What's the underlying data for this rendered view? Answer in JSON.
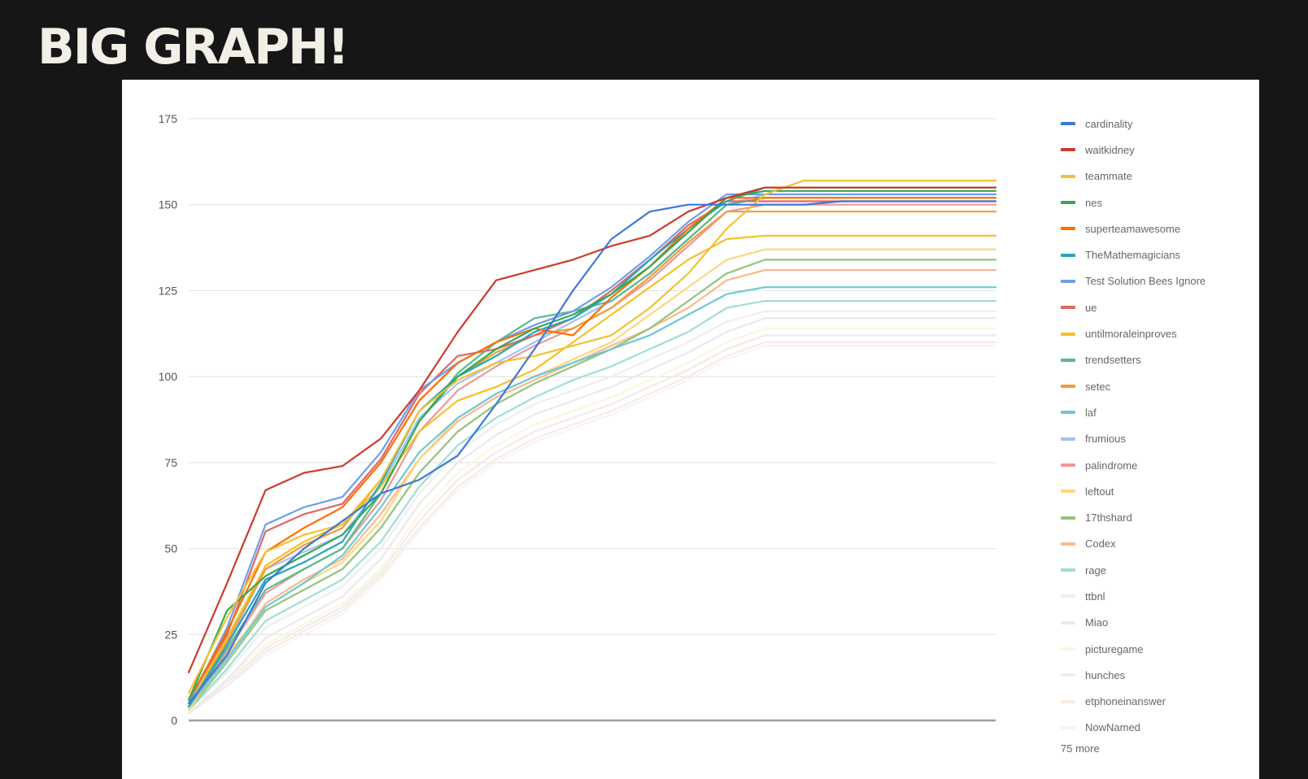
{
  "slide": {
    "title": "BIG GRAPH!"
  },
  "chart_data": {
    "type": "line",
    "title": "",
    "xlabel": "",
    "ylabel": "",
    "ylim": [
      0,
      175
    ],
    "yticks": [
      0,
      25,
      50,
      75,
      100,
      125,
      150,
      175
    ],
    "grid": "horizontal",
    "legend_position": "right",
    "legend_more_label": "75 more",
    "n_points": 22,
    "series": [
      {
        "name": "cardinality",
        "color": "#3c78d8",
        "values": [
          5,
          19,
          40,
          50,
          58,
          66,
          70,
          77,
          92,
          108,
          125,
          140,
          148,
          150,
          150,
          150,
          150,
          151,
          151,
          151,
          151,
          151
        ]
      },
      {
        "name": "waitkidney",
        "color": "#cc3b2e",
        "values": [
          14,
          40,
          67,
          72,
          74,
          82,
          96,
          113,
          128,
          131,
          134,
          138,
          141,
          148,
          152,
          155,
          155,
          155,
          155,
          155,
          155,
          155
        ]
      },
      {
        "name": "teammate",
        "color": "#f1c232",
        "values": [
          8,
          30,
          49,
          54,
          57,
          70,
          90,
          99,
          104,
          106,
          109,
          112,
          120,
          130,
          143,
          153,
          157,
          157,
          157,
          157,
          157,
          157
        ]
      },
      {
        "name": "nes",
        "color": "#34a853",
        "values": [
          6,
          32,
          42,
          48,
          54,
          66,
          87,
          100,
          108,
          114,
          118,
          124,
          132,
          142,
          152,
          154,
          154,
          154,
          154,
          154,
          154,
          154
        ]
      },
      {
        "name": "superteamawesome",
        "color": "#ff6d01",
        "values": [
          6,
          26,
          49,
          56,
          62,
          75,
          93,
          104,
          110,
          114,
          112,
          123,
          132,
          143,
          152,
          152,
          152,
          152,
          152,
          152,
          152,
          152
        ]
      },
      {
        "name": "TheMathemagicians",
        "color": "#24a6b8",
        "values": [
          4,
          22,
          41,
          46,
          52,
          69,
          90,
          100,
          106,
          113,
          117,
          124,
          134,
          143,
          151,
          155,
          155,
          155,
          155,
          155,
          155,
          155
        ]
      },
      {
        "name": "Test Solution Bees Ignore",
        "color": "#6d9eeb",
        "values": [
          5,
          27,
          57,
          62,
          65,
          78,
          96,
          104,
          110,
          115,
          119,
          126,
          135,
          145,
          153,
          153,
          153,
          153,
          153,
          153,
          153,
          153
        ]
      },
      {
        "name": "ue",
        "color": "#e06666",
        "values": [
          6,
          25,
          55,
          60,
          63,
          76,
          95,
          106,
          108,
          112,
          117,
          125,
          134,
          144,
          151,
          151,
          151,
          151,
          151,
          151,
          151,
          151
        ]
      },
      {
        "name": "untilmoraleinproves",
        "color": "#f6c026",
        "values": [
          5,
          24,
          45,
          52,
          57,
          68,
          84,
          93,
          97,
          102,
          110,
          118,
          126,
          134,
          140,
          141,
          141,
          141,
          141,
          141,
          141,
          141
        ]
      },
      {
        "name": "trendsetters",
        "color": "#57bb8a",
        "values": [
          4,
          21,
          38,
          44,
          50,
          66,
          87,
          101,
          110,
          117,
          119,
          122,
          130,
          140,
          150,
          152,
          152,
          152,
          152,
          152,
          152,
          152
        ]
      },
      {
        "name": "setec",
        "color": "#f39c37",
        "values": [
          5,
          23,
          44,
          51,
          56,
          70,
          90,
          100,
          107,
          112,
          114,
          120,
          129,
          139,
          148,
          148,
          148,
          148,
          148,
          148,
          148,
          148
        ]
      },
      {
        "name": "laf",
        "color": "#6bc8d6",
        "values": [
          4,
          18,
          33,
          40,
          48,
          62,
          78,
          88,
          95,
          100,
          104,
          108,
          112,
          118,
          124,
          126,
          126,
          126,
          126,
          126,
          126,
          126
        ]
      },
      {
        "name": "frumious",
        "color": "#a4c2f4",
        "values": [
          4,
          22,
          44,
          49,
          54,
          68,
          88,
          98,
          104,
          110,
          116,
          122,
          130,
          140,
          150,
          153,
          153,
          153,
          153,
          153,
          153,
          153
        ]
      },
      {
        "name": "palindrome",
        "color": "#ea9999",
        "values": [
          4,
          20,
          37,
          44,
          50,
          64,
          84,
          96,
          103,
          109,
          114,
          120,
          128,
          138,
          148,
          150,
          150,
          150,
          150,
          150,
          150,
          150
        ]
      },
      {
        "name": "leftout",
        "color": "#fbd87f",
        "values": [
          3,
          19,
          33,
          40,
          46,
          58,
          76,
          88,
          95,
          100,
          105,
          110,
          118,
          126,
          134,
          137,
          137,
          137,
          137,
          137,
          137,
          137
        ]
      },
      {
        "name": "17thshard",
        "color": "#93c47d",
        "values": [
          3,
          17,
          32,
          38,
          44,
          56,
          72,
          84,
          92,
          98,
          103,
          108,
          114,
          122,
          130,
          134,
          134,
          134,
          134,
          134,
          134,
          134
        ]
      },
      {
        "name": "Codex",
        "color": "#f9b98c",
        "values": [
          4,
          18,
          34,
          41,
          47,
          60,
          76,
          87,
          94,
          99,
          104,
          109,
          114,
          120,
          128,
          131,
          131,
          131,
          131,
          131,
          131,
          131
        ]
      },
      {
        "name": "rage",
        "color": "#a2dcd6",
        "values": [
          3,
          15,
          29,
          35,
          41,
          52,
          68,
          80,
          88,
          94,
          99,
          103,
          108,
          113,
          120,
          122,
          122,
          122,
          122,
          122,
          122,
          122
        ]
      },
      {
        "name": "ttbnl",
        "color": "#eeeeee",
        "values": [
          3,
          14,
          27,
          33,
          39,
          50,
          66,
          78,
          86,
          92,
          96,
          100,
          105,
          110,
          116,
          119,
          119,
          119,
          119,
          119,
          119,
          119
        ]
      },
      {
        "name": "Miao",
        "color": "#e9e9ee",
        "values": [
          2,
          12,
          24,
          30,
          36,
          47,
          63,
          75,
          83,
          89,
          93,
          97,
          102,
          107,
          113,
          117,
          117,
          117,
          117,
          117,
          117,
          117
        ]
      },
      {
        "name": "picturegame",
        "color": "#fdf5dc",
        "values": [
          2,
          12,
          22,
          28,
          34,
          44,
          60,
          72,
          80,
          86,
          90,
          94,
          99,
          104,
          110,
          114,
          114,
          114,
          114,
          114,
          114,
          114
        ]
      },
      {
        "name": "hunches",
        "color": "#ececec",
        "values": [
          2,
          11,
          21,
          27,
          33,
          43,
          58,
          70,
          78,
          84,
          88,
          92,
          97,
          102,
          108,
          112,
          112,
          112,
          112,
          112,
          112,
          112
        ]
      },
      {
        "name": "etphoneinanswer",
        "color": "#fbe9e3",
        "values": [
          2,
          10,
          20,
          26,
          32,
          42,
          56,
          68,
          76,
          82,
          86,
          90,
          95,
          100,
          106,
          110,
          110,
          110,
          110,
          110,
          110,
          110
        ]
      },
      {
        "name": "NowNamed",
        "color": "#f5f5f5",
        "values": [
          2,
          10,
          19,
          25,
          31,
          41,
          55,
          67,
          75,
          81,
          85,
          89,
          94,
          99,
          105,
          109,
          109,
          109,
          109,
          109,
          109,
          109
        ]
      }
    ],
    "additional_series_count": 75
  }
}
